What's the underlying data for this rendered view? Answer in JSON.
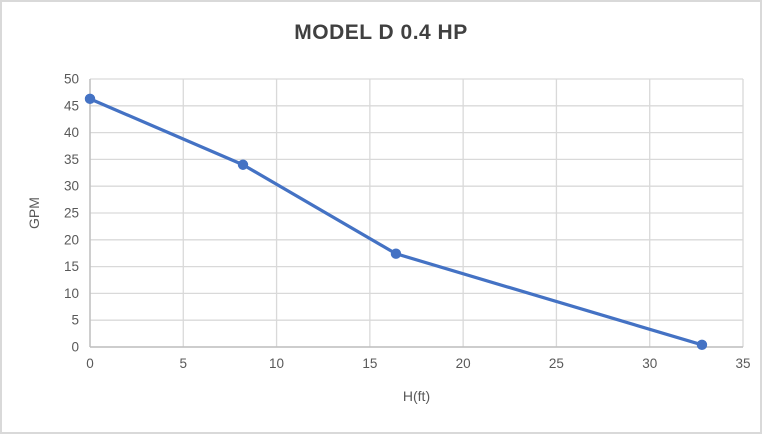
{
  "chart_data": {
    "type": "line",
    "title": "MODEL D 0.4 HP",
    "xlabel": "H(ft)",
    "ylabel": "GPM",
    "xlim": [
      0,
      35
    ],
    "ylim": [
      0,
      50
    ],
    "x_ticks": [
      0,
      5,
      10,
      15,
      20,
      25,
      30,
      35
    ],
    "y_ticks": [
      0,
      5,
      10,
      15,
      20,
      25,
      30,
      35,
      40,
      45,
      50
    ],
    "grid": "both",
    "legend_position": "none",
    "series": [
      {
        "name": "MODEL D 0.4 HP",
        "x": [
          0,
          8.2,
          16.4,
          32.8
        ],
        "y": [
          46.3,
          34,
          17.4,
          0.4
        ],
        "marker": "circle"
      }
    ]
  },
  "colors": {
    "series_line": "#4472C4",
    "marker_fill": "#4472C4",
    "gridline": "#d9d9d9",
    "axis_line": "#bfbfbf",
    "tick_text": "#595959",
    "title_text": "#404040",
    "background": "#ffffff",
    "frame_border": "#d9d9d9"
  }
}
